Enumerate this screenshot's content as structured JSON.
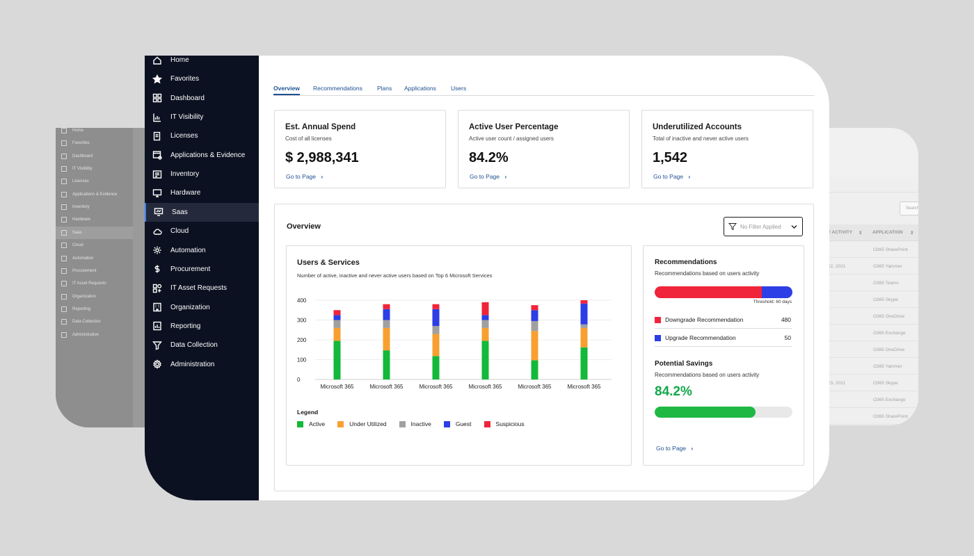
{
  "sidebar": {
    "items": [
      {
        "label": "Home",
        "icon": "home-icon"
      },
      {
        "label": "Favorites",
        "icon": "star-icon"
      },
      {
        "label": "Dashboard",
        "icon": "dashboard-icon"
      },
      {
        "label": "IT Visibility",
        "icon": "visibility-chart-icon"
      },
      {
        "label": "Licenses",
        "icon": "license-icon"
      },
      {
        "label": "Applications & Evidence",
        "icon": "applications-icon"
      },
      {
        "label": "Inventory",
        "icon": "inventory-icon"
      },
      {
        "label": "Hardware",
        "icon": "hardware-icon"
      },
      {
        "label": "Saas",
        "icon": "saas-icon",
        "active": true
      },
      {
        "label": "Cloud",
        "icon": "cloud-icon"
      },
      {
        "label": "Automation",
        "icon": "automation-icon"
      },
      {
        "label": "Procurement",
        "icon": "dollar-icon"
      },
      {
        "label": "IT Asset Requests",
        "icon": "asset-request-icon"
      },
      {
        "label": "Organization",
        "icon": "organization-icon"
      },
      {
        "label": "Reporting",
        "icon": "reporting-icon"
      },
      {
        "label": "Data Collection",
        "icon": "data-collection-icon"
      },
      {
        "label": "Administration",
        "icon": "gear-icon"
      }
    ]
  },
  "tabs": [
    {
      "label": "Overview",
      "active": true
    },
    {
      "label": "Recommendations"
    },
    {
      "label": "Plans"
    },
    {
      "label": "Applications"
    },
    {
      "label": "Users"
    }
  ],
  "kpis": [
    {
      "title": "Est. Annual Spend",
      "subtitle": "Cost of all licenses",
      "value": "$ 2,988,341",
      "link": "Go to Page"
    },
    {
      "title": "Active User Percentage",
      "subtitle": "Active user count / assigned users",
      "value": "84.2%",
      "link": "Go to Page"
    },
    {
      "title": "Underutilized Accounts",
      "subtitle": "Total of inactive and never active users",
      "value": "1,542",
      "link": "Go to Page"
    }
  ],
  "overview": {
    "title": "Overview",
    "filter_placeholder": "No Filter Applied"
  },
  "users_services": {
    "title": "Users & Services",
    "subtitle": "Number of active, inactive and never active users based on Top 6 Microsoft Services",
    "legend_title": "Legend"
  },
  "chart_data": {
    "type": "bar",
    "stacked": true,
    "categories": [
      "Microsoft 365",
      "Microsoft 365",
      "Microsoft 365",
      "Microsoft 365",
      "Microsoft 365",
      "Microsoft 365"
    ],
    "ylim": [
      0,
      400
    ],
    "yticks": [
      0,
      100,
      200,
      300,
      400
    ],
    "grid": true,
    "legend_position": "bottom",
    "series": [
      {
        "name": "Active",
        "color": "#14b83a",
        "values": [
          195,
          147,
          118,
          195,
          97,
          162
        ]
      },
      {
        "name": "Under Utilized",
        "color": "#f7a030",
        "values": [
          65,
          113,
          112,
          65,
          148,
          98
        ]
      },
      {
        "name": "Inactive",
        "color": "#a0a0a0",
        "values": [
          40,
          40,
          40,
          40,
          50,
          18
        ]
      },
      {
        "name": "Guest",
        "color": "#2c3ee5",
        "values": [
          25,
          55,
          85,
          25,
          55,
          105
        ]
      },
      {
        "name": "Suspicious",
        "color": "#f0243a",
        "values": [
          25,
          25,
          25,
          65,
          25,
          17
        ]
      }
    ]
  },
  "recommendations": {
    "title": "Recommendations",
    "subtitle": "Recommendations based on users activity",
    "threshold": "Threshold: 60 days",
    "items": [
      {
        "label": "Downgrade Recommendation",
        "value": "480",
        "color": "#f0243a"
      },
      {
        "label": "Upgrade Recommendation",
        "value": "50",
        "color": "#2c3ee5"
      }
    ],
    "split_fraction_downgrade": 0.78
  },
  "savings": {
    "title": "Potential Savings",
    "subtitle": "Recommendations based on users activity",
    "value": "84.2%",
    "progress_percent": 73,
    "link": "Go to Page"
  },
  "ghost_table": {
    "headers": [
      "T ACTIVITY",
      "APPLICATION"
    ],
    "search_placeholder": "Search",
    "rows": [
      {
        "date": "",
        "app": "O365 SharePoint"
      },
      {
        "date": "22, 2021",
        "app": "O365 Yammer"
      },
      {
        "date": "",
        "app": "O365 Teams"
      },
      {
        "date": "",
        "app": "O365 Skype"
      },
      {
        "date": "",
        "app": "O365 OneDrive"
      },
      {
        "date": "",
        "app": "O365 Exchange"
      },
      {
        "date": "",
        "app": "O365 OneDrive"
      },
      {
        "date": "",
        "app": "O365 Yammer"
      },
      {
        "date": "23, 2021",
        "app": "O365 Skype"
      },
      {
        "date": "",
        "app": "O365 Exchange"
      },
      {
        "date": "",
        "app": "O365 SharePoint"
      }
    ]
  }
}
